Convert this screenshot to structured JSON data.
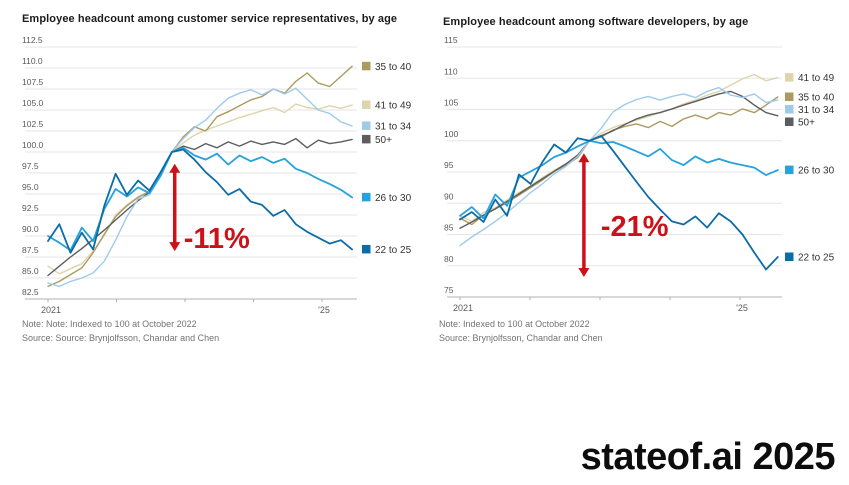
{
  "page": {
    "watermark": "stateof.ai 2025",
    "background_color": "#ffffff",
    "annotation_color": "#cc1118",
    "grid_color": "#e6e6e6",
    "axis_color": "#b0b0b0",
    "tick_label_color": "#5a5a5a",
    "legend_text_color": "#333333"
  },
  "chart_data": [
    {
      "type": "line",
      "title": "Employee headcount among customer service representatives, by age",
      "note": "Note: Note: Indexed to 100 at October 2022",
      "source": "Source: Source: Brynjolfsson, Chandar and Chen",
      "ylim": [
        82.5,
        112.5
      ],
      "y_ticks": [
        112.5,
        110.0,
        107.5,
        105.0,
        102.5,
        100.0,
        97.5,
        95.0,
        92.5,
        90.0,
        87.5,
        85.0,
        82.5
      ],
      "y_tick_labels": [
        "112.5",
        "110.0",
        "107.5",
        "105.0",
        "102.5",
        "100.0",
        "97.5",
        "95.0",
        "92.5",
        "90.0",
        "87.5",
        "85.0",
        "82.5"
      ],
      "x_start_year": 2021.0,
      "x_end_year": 2025.44,
      "x_tick_years": [
        2021,
        2022,
        2023,
        2024,
        2025
      ],
      "x_tick_labels": [
        "2021",
        "",
        "",
        "",
        "'25"
      ],
      "grid": true,
      "legend_position": "right-of-plot, aligned to line ends",
      "index_note": "all series = 100 at October 2022",
      "annotation": {
        "label": "-11%",
        "x_year": 2022.85,
        "arrow_top_value": 98.6,
        "arrow_bottom_value": 88.2,
        "label_value": 89.5,
        "label_dx": 9,
        "color": "#cc1118"
      },
      "series": [
        {
          "name": "41 to 49",
          "color": "#ddd5ab",
          "width": 1.4,
          "values": [
            86.4,
            85.5,
            86.1,
            86.7,
            88.2,
            90.1,
            92.5,
            93.7,
            94.7,
            95.3,
            97.2,
            100.0,
            101.1,
            102.0,
            102.6,
            103.1,
            103.6,
            104.1,
            104.5,
            104.9,
            105.3,
            104.7,
            105.7,
            105.3,
            105.1,
            105.5,
            105.2,
            105.6
          ]
        },
        {
          "name": "35 to 40",
          "color": "#ab9b60",
          "width": 1.4,
          "values": [
            84.0,
            84.6,
            85.4,
            86.2,
            88.0,
            90.2,
            92.3,
            93.6,
            94.6,
            95.3,
            97.3,
            100.0,
            101.8,
            103.0,
            102.5,
            104.2,
            104.8,
            105.5,
            106.2,
            106.6,
            107.5,
            107.0,
            108.4,
            109.4,
            108.2,
            107.8,
            109.0,
            110.2
          ]
        },
        {
          "name": "50+",
          "color": "#5c5d60",
          "width": 1.4,
          "values": [
            85.3,
            86.4,
            87.5,
            88.5,
            89.6,
            90.7,
            91.9,
            93.1,
            94.2,
            95.2,
            97.1,
            100.0,
            100.7,
            100.3,
            101.0,
            100.5,
            101.2,
            100.7,
            101.3,
            100.9,
            101.2,
            100.9,
            101.6,
            100.5,
            101.4,
            101.0,
            101.2,
            101.5
          ]
        },
        {
          "name": "31 to 34",
          "color": "#9ecbea",
          "width": 1.4,
          "values": [
            84.4,
            84.0,
            84.6,
            85.0,
            85.6,
            87.0,
            89.5,
            92.3,
            94.4,
            94.9,
            97.1,
            100.0,
            101.6,
            102.9,
            103.8,
            105.2,
            106.4,
            107.0,
            107.4,
            106.8,
            107.5,
            106.9,
            107.6,
            106.3,
            105.0,
            104.6,
            103.6,
            103.1
          ]
        },
        {
          "name": "26 to 30",
          "color": "#26a2dc",
          "width": 1.8,
          "values": [
            90.0,
            89.2,
            88.3,
            91.0,
            89.4,
            93.2,
            95.6,
            94.7,
            95.8,
            95.1,
            97.2,
            100.0,
            100.5,
            99.6,
            99.1,
            99.8,
            98.5,
            99.6,
            98.9,
            99.4,
            98.7,
            99.2,
            98.0,
            97.5,
            96.8,
            96.2,
            95.5,
            94.6
          ]
        },
        {
          "name": "22 to 25",
          "color": "#0d6ca6",
          "width": 1.8,
          "values": [
            89.4,
            91.4,
            88.0,
            90.4,
            88.4,
            93.6,
            97.4,
            94.9,
            96.6,
            95.4,
            97.6,
            100.0,
            100.3,
            99.1,
            97.6,
            96.4,
            94.9,
            95.6,
            94.1,
            93.7,
            92.4,
            93.1,
            91.4,
            90.5,
            89.8,
            89.1,
            89.5,
            88.4
          ]
        }
      ]
    },
    {
      "type": "line",
      "title": "Employee headcount among software developers, by age",
      "note": "Note: Indexed to 100 at October 2022",
      "source": "Source: Brynjolfsson, Chandar and Chen",
      "ylim": [
        75,
        115
      ],
      "y_ticks": [
        115,
        110,
        105,
        100,
        95,
        90,
        85,
        80,
        75
      ],
      "y_tick_labels": [
        "115",
        "110",
        "105",
        "100",
        "95",
        "90",
        "85",
        "80",
        "75"
      ],
      "x_start_year": 2021.0,
      "x_end_year": 2025.54,
      "x_tick_years": [
        2021,
        2022,
        2023,
        2024,
        2025
      ],
      "x_tick_labels": [
        "2021",
        "",
        "",
        "",
        "'25"
      ],
      "grid": true,
      "legend_position": "right-of-plot, aligned to line ends",
      "index_note": "all series = 100 at October 2022",
      "annotation": {
        "label": "-21%",
        "x_year": 2022.77,
        "arrow_top_value": 98.0,
        "arrow_bottom_value": 78.2,
        "label_value": 86.0,
        "label_dx": 17,
        "color": "#cc1118"
      },
      "series": [
        {
          "name": "41 to 49",
          "color": "#ddd5ab",
          "width": 1.4,
          "values": [
            88.0,
            87.1,
            88.5,
            89.3,
            90.5,
            91.7,
            92.8,
            94.1,
            95.3,
            96.3,
            97.6,
            100.0,
            101.2,
            102.1,
            102.7,
            103.3,
            103.9,
            104.5,
            105.1,
            105.9,
            106.5,
            107.3,
            107.9,
            108.9,
            109.9,
            110.6,
            109.6,
            110.1
          ]
        },
        {
          "name": "35 to 40",
          "color": "#ab9b60",
          "width": 1.4,
          "values": [
            87.6,
            86.6,
            88.1,
            89.1,
            90.1,
            91.3,
            92.5,
            93.7,
            95.1,
            96.1,
            97.3,
            100.0,
            100.6,
            101.7,
            102.3,
            102.7,
            102.1,
            103.1,
            102.3,
            103.5,
            104.1,
            103.5,
            104.5,
            104.1,
            105.1,
            104.5,
            105.7,
            107.0
          ]
        },
        {
          "name": "50+",
          "color": "#5c5d60",
          "width": 1.4,
          "values": [
            86.0,
            87.0,
            88.1,
            89.1,
            90.3,
            91.5,
            92.7,
            93.9,
            95.1,
            96.3,
            97.7,
            100.0,
            100.8,
            101.6,
            102.6,
            103.5,
            104.1,
            104.5,
            105.1,
            105.7,
            106.3,
            106.9,
            107.5,
            107.9,
            107.1,
            105.7,
            104.5,
            104.0
          ]
        },
        {
          "name": "31 to 34",
          "color": "#9ecbea",
          "width": 1.4,
          "values": [
            83.2,
            84.6,
            85.8,
            87.1,
            88.5,
            90.1,
            91.7,
            93.1,
            94.7,
            95.9,
            97.5,
            100.0,
            102.0,
            104.6,
            105.8,
            106.6,
            107.1,
            106.5,
            107.1,
            107.5,
            106.9,
            107.9,
            108.5,
            107.3,
            106.9,
            107.5,
            106.1,
            106.5
          ]
        },
        {
          "name": "26 to 30",
          "color": "#26a2dc",
          "width": 1.8,
          "values": [
            88.0,
            89.4,
            87.6,
            91.4,
            89.6,
            94.1,
            95.1,
            96.1,
            97.4,
            98.1,
            99.1,
            100.0,
            99.6,
            99.8,
            99.1,
            98.3,
            97.5,
            98.7,
            96.9,
            96.1,
            97.5,
            96.5,
            97.1,
            96.5,
            96.1,
            95.7,
            94.5,
            95.3
          ]
        },
        {
          "name": "22 to 25",
          "color": "#0d6ca6",
          "width": 1.8,
          "values": [
            87.4,
            88.6,
            87.0,
            90.6,
            88.0,
            94.6,
            93.1,
            96.6,
            99.4,
            98.1,
            100.4,
            100.0,
            100.8,
            98.4,
            95.9,
            93.4,
            91.0,
            89.0,
            87.1,
            86.6,
            87.9,
            86.1,
            88.4,
            87.1,
            85.0,
            82.1,
            79.4,
            81.4
          ]
        }
      ]
    }
  ]
}
